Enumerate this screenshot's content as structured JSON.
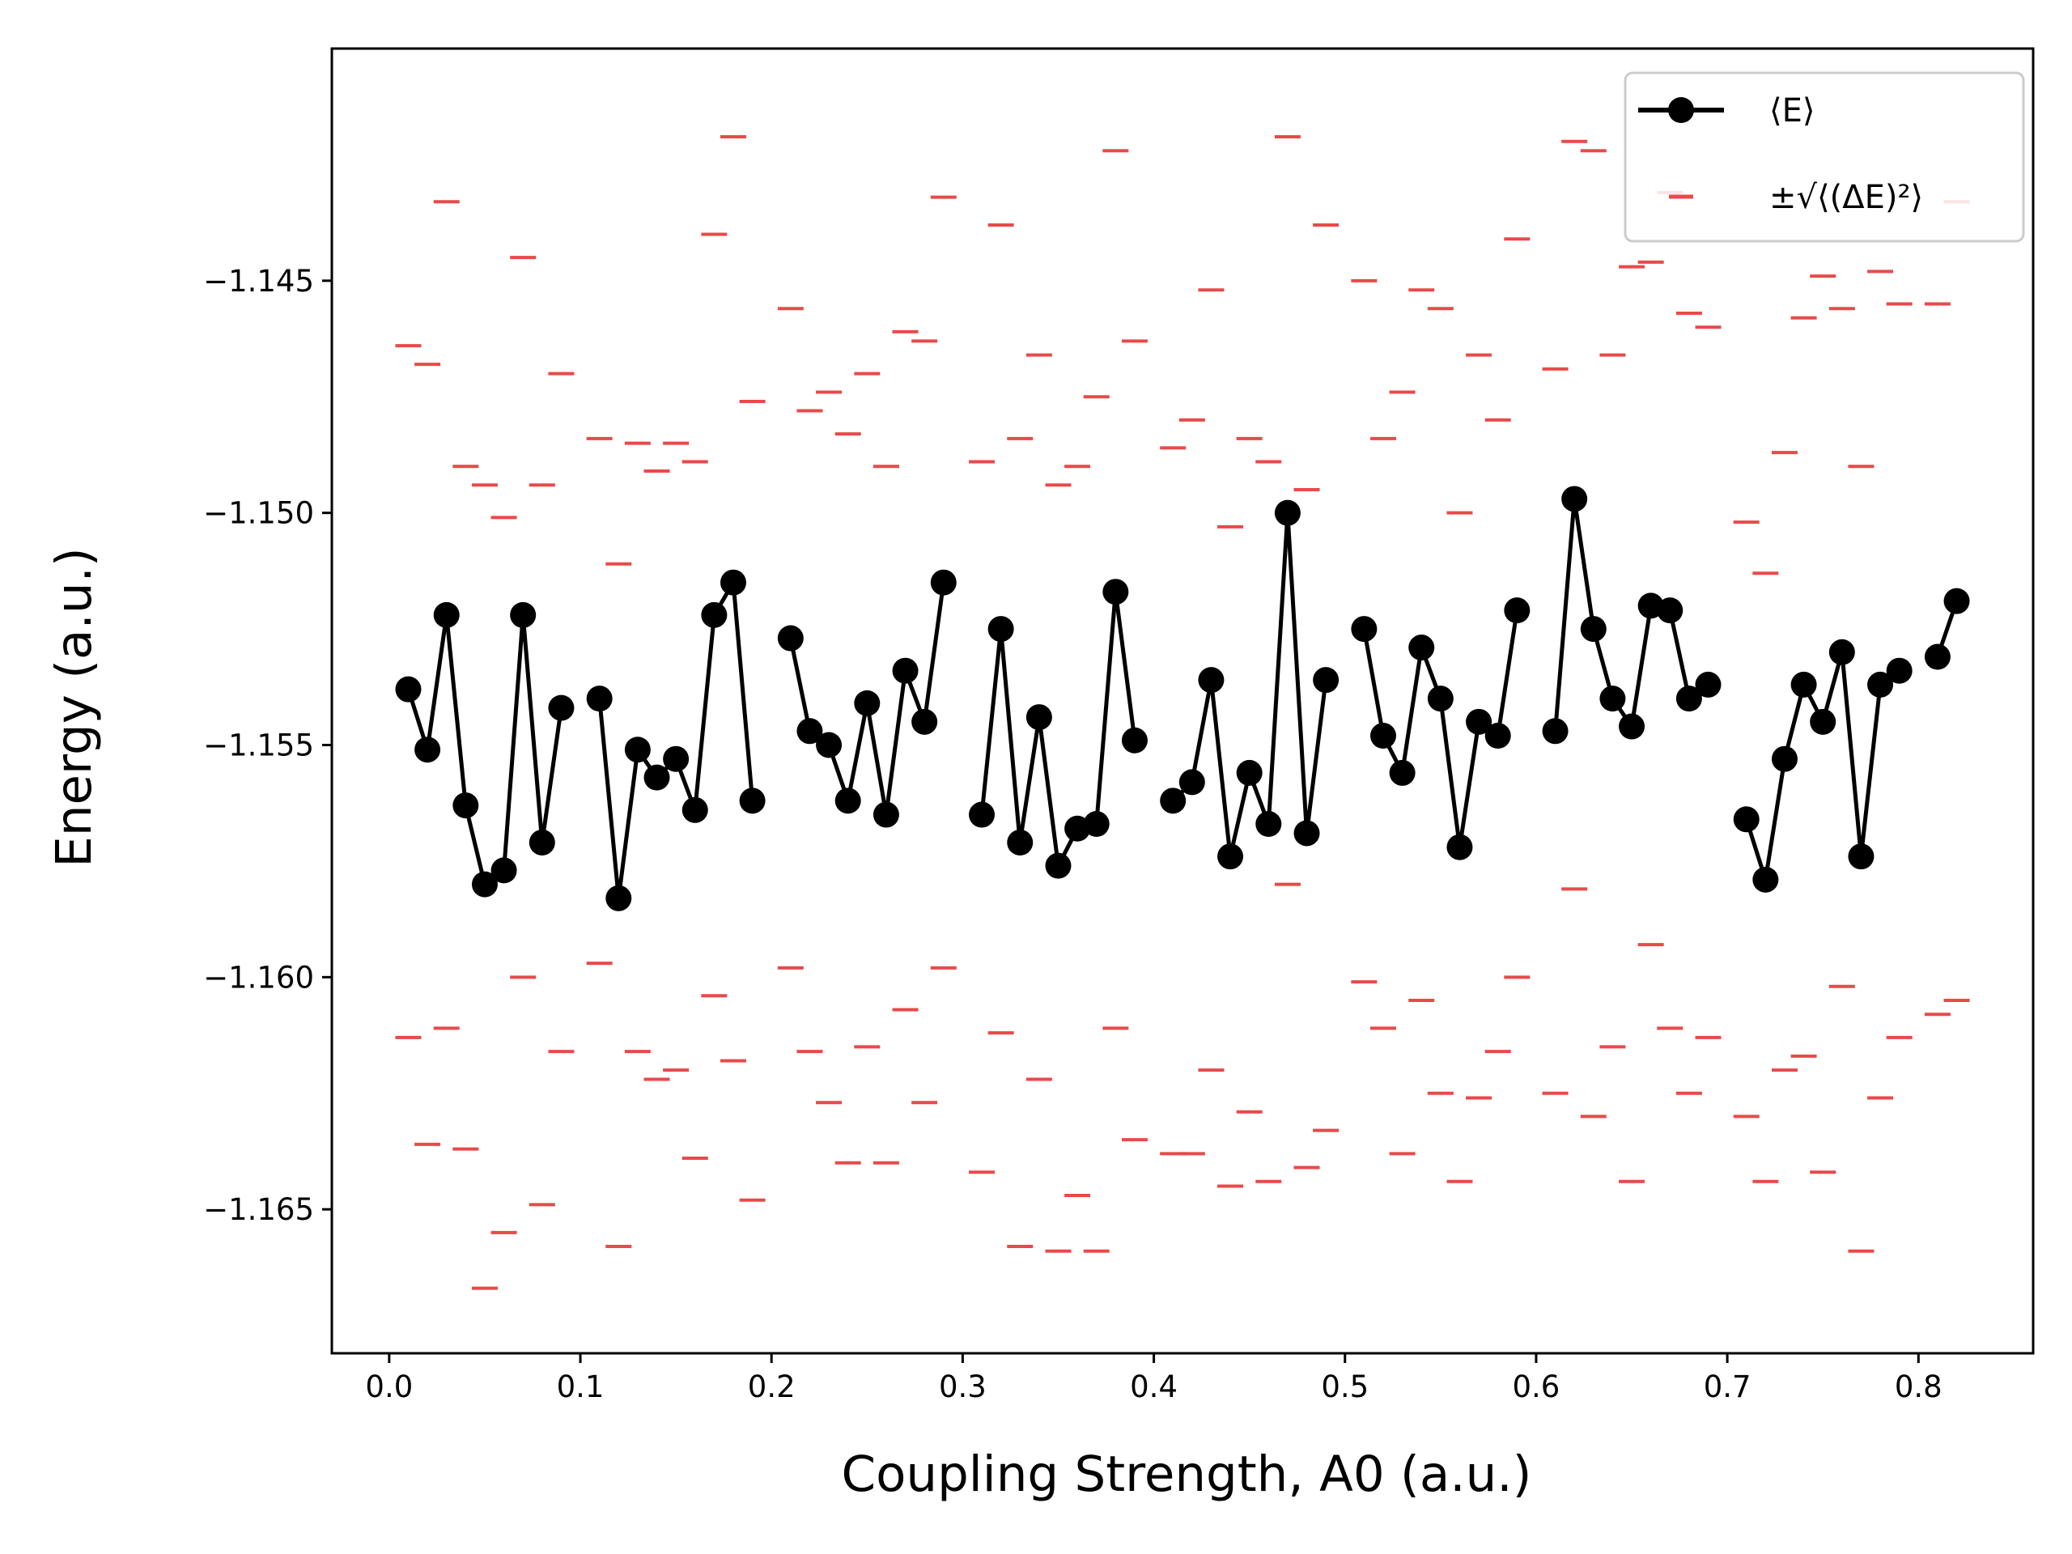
{
  "chart_data": {
    "type": "line",
    "title": "",
    "xlabel": "Coupling Strength, A0 (a.u.)",
    "ylabel": "Energy (a.u.)",
    "xlim": [
      -0.03,
      0.86
    ],
    "ylim": [
      -1.1681,
      -1.14
    ],
    "xticks": [
      0.0,
      0.1,
      0.2,
      0.3,
      0.4,
      0.5,
      0.6,
      0.7,
      0.8
    ],
    "xtick_labels": [
      "0.0",
      "0.1",
      "0.2",
      "0.3",
      "0.4",
      "0.5",
      "0.6",
      "0.7",
      "0.8"
    ],
    "yticks": [
      -1.145,
      -1.15,
      -1.155,
      -1.16,
      -1.165
    ],
    "ytick_labels": [
      "−1.145",
      "−1.150",
      "−1.155",
      "−1.160",
      "−1.165"
    ],
    "grid": false,
    "legend_position": "top-right",
    "series": [
      {
        "name": "⟨E⟩",
        "color": "#000000",
        "marker": "circle",
        "x": [
          0.01,
          0.02,
          0.03,
          0.04,
          0.05,
          0.06,
          0.07,
          0.08,
          0.09,
          0.1,
          0.11,
          0.12,
          0.13,
          0.14,
          0.15,
          0.16,
          0.17,
          0.18,
          0.19,
          0.2,
          0.21,
          0.22,
          0.23,
          0.24,
          0.25,
          0.26,
          0.27,
          0.28,
          0.29,
          0.3,
          0.31,
          0.32,
          0.33,
          0.34,
          0.35,
          0.36,
          0.37,
          0.38,
          0.39,
          0.4,
          0.41,
          0.42,
          0.43,
          0.44,
          0.45,
          0.46,
          0.47,
          0.48,
          0.49,
          0.5,
          0.51,
          0.52,
          0.53,
          0.54,
          0.55,
          0.56,
          0.57,
          0.58,
          0.59,
          0.6,
          0.61,
          0.62,
          0.63,
          0.64,
          0.65,
          0.66,
          0.67,
          0.68,
          0.69,
          0.7,
          0.71,
          0.72,
          0.73,
          0.74,
          0.75,
          0.76,
          0.77,
          0.78,
          0.79,
          0.8,
          0.81,
          0.82
        ],
        "values": [
          -1.1538,
          -1.1551,
          -1.1522,
          -1.1563,
          -1.158,
          -1.1577,
          -1.1522,
          -1.1571,
          -1.1542,
          null,
          -1.154,
          -1.1583,
          -1.1551,
          -1.1557,
          -1.1553,
          -1.1564,
          -1.1522,
          -1.1515,
          -1.1562,
          null,
          -1.1527,
          -1.1547,
          -1.155,
          -1.1562,
          -1.1541,
          -1.1565,
          -1.1534,
          -1.1545,
          -1.1515,
          null,
          -1.1565,
          -1.1525,
          -1.1571,
          -1.1544,
          -1.1576,
          -1.1568,
          -1.1567,
          -1.1517,
          -1.1549,
          null,
          -1.1562,
          -1.1558,
          -1.1536,
          -1.1574,
          -1.1556,
          -1.1567,
          -1.15,
          -1.1569,
          -1.1536,
          null,
          -1.1525,
          -1.1548,
          -1.1556,
          -1.1529,
          -1.154,
          -1.1572,
          -1.1545,
          -1.1548,
          -1.1521,
          null,
          -1.1547,
          -1.1497,
          -1.1525,
          -1.154,
          -1.1546,
          -1.152,
          -1.1521,
          -1.154,
          -1.1537,
          null,
          -1.1566,
          -1.1579,
          -1.1553,
          -1.1537,
          -1.1545,
          -1.153,
          -1.1574,
          -1.1537,
          -1.1534,
          null,
          -1.1531,
          -1.1519
        ]
      },
      {
        "name": "±√⟨(ΔE)²⟩ (upper)",
        "color": "#e84a4a",
        "marker": "hline",
        "x": [
          0.01,
          0.02,
          0.03,
          0.04,
          0.05,
          0.06,
          0.07,
          0.08,
          0.09,
          0.1,
          0.11,
          0.12,
          0.13,
          0.14,
          0.15,
          0.16,
          0.17,
          0.18,
          0.19,
          0.2,
          0.21,
          0.22,
          0.23,
          0.24,
          0.25,
          0.26,
          0.27,
          0.28,
          0.29,
          0.3,
          0.31,
          0.32,
          0.33,
          0.34,
          0.35,
          0.36,
          0.37,
          0.38,
          0.39,
          0.4,
          0.41,
          0.42,
          0.43,
          0.44,
          0.45,
          0.46,
          0.47,
          0.48,
          0.49,
          0.5,
          0.51,
          0.52,
          0.53,
          0.54,
          0.55,
          0.56,
          0.57,
          0.58,
          0.59,
          0.6,
          0.61,
          0.62,
          0.63,
          0.64,
          0.65,
          0.66,
          0.67,
          0.68,
          0.69,
          0.7,
          0.71,
          0.72,
          0.73,
          0.74,
          0.75,
          0.76,
          0.77,
          0.78,
          0.79,
          0.8,
          0.81,
          0.82
        ],
        "values": [
          -1.1464,
          -1.1468,
          -1.1433,
          -1.149,
          -1.1494,
          -1.1501,
          -1.1445,
          -1.1494,
          -1.147,
          null,
          -1.1484,
          -1.1511,
          -1.1485,
          -1.1491,
          -1.1485,
          -1.1489,
          -1.144,
          -1.1419,
          -1.1476,
          null,
          -1.1456,
          -1.1478,
          -1.1474,
          -1.1483,
          -1.147,
          -1.149,
          -1.1461,
          -1.1463,
          -1.1432,
          null,
          -1.1489,
          -1.1438,
          -1.1484,
          -1.1466,
          -1.1494,
          -1.149,
          -1.1475,
          -1.1422,
          -1.1463,
          null,
          -1.1486,
          -1.148,
          -1.1452,
          -1.1503,
          -1.1484,
          -1.1489,
          -1.1419,
          -1.1495,
          -1.1438,
          null,
          -1.145,
          -1.1484,
          -1.1474,
          -1.1452,
          -1.1456,
          -1.15,
          -1.1466,
          -1.148,
          -1.1441,
          null,
          -1.1469,
          -1.142,
          -1.1422,
          -1.1466,
          -1.1447,
          -1.1446,
          -1.1431,
          -1.1457,
          -1.146,
          null,
          -1.1502,
          -1.1513,
          -1.1487,
          -1.1458,
          -1.1449,
          -1.1456,
          -1.149,
          -1.1448,
          -1.1455,
          null,
          -1.1455,
          -1.1433
        ]
      },
      {
        "name": "±√⟨(ΔE)²⟩ (lower)",
        "color": "#e84a4a",
        "marker": "hline",
        "x": [
          0.01,
          0.02,
          0.03,
          0.04,
          0.05,
          0.06,
          0.07,
          0.08,
          0.09,
          0.1,
          0.11,
          0.12,
          0.13,
          0.14,
          0.15,
          0.16,
          0.17,
          0.18,
          0.19,
          0.2,
          0.21,
          0.22,
          0.23,
          0.24,
          0.25,
          0.26,
          0.27,
          0.28,
          0.29,
          0.3,
          0.31,
          0.32,
          0.33,
          0.34,
          0.35,
          0.36,
          0.37,
          0.38,
          0.39,
          0.4,
          0.41,
          0.42,
          0.43,
          0.44,
          0.45,
          0.46,
          0.47,
          0.48,
          0.49,
          0.5,
          0.51,
          0.52,
          0.53,
          0.54,
          0.55,
          0.56,
          0.57,
          0.58,
          0.59,
          0.6,
          0.61,
          0.62,
          0.63,
          0.64,
          0.65,
          0.66,
          0.67,
          0.68,
          0.69,
          0.7,
          0.71,
          0.72,
          0.73,
          0.74,
          0.75,
          0.76,
          0.77,
          0.78,
          0.79,
          0.8,
          0.81,
          0.82
        ],
        "values": [
          -1.1613,
          -1.1636,
          -1.1611,
          -1.1637,
          -1.1667,
          -1.1655,
          -1.16,
          -1.1649,
          -1.1616,
          null,
          -1.1597,
          -1.1658,
          -1.1616,
          -1.1622,
          -1.162,
          -1.1639,
          -1.1604,
          -1.1618,
          -1.1648,
          null,
          -1.1598,
          -1.1616,
          -1.1627,
          -1.164,
          -1.1615,
          -1.164,
          -1.1607,
          -1.1627,
          -1.1598,
          null,
          -1.1642,
          -1.1612,
          -1.1658,
          -1.1622,
          -1.1659,
          -1.1647,
          -1.1659,
          -1.1611,
          -1.1635,
          null,
          -1.1638,
          -1.1638,
          -1.162,
          -1.1645,
          -1.1629,
          -1.1644,
          -1.158,
          -1.1641,
          -1.1633,
          null,
          -1.1601,
          -1.1611,
          -1.1638,
          -1.1605,
          -1.1625,
          -1.1644,
          -1.1626,
          -1.1616,
          -1.16,
          null,
          -1.1625,
          -1.1581,
          -1.163,
          -1.1615,
          -1.1644,
          -1.1593,
          -1.1611,
          -1.1625,
          -1.1613,
          null,
          -1.163,
          -1.1644,
          -1.162,
          -1.1617,
          -1.1642,
          -1.1602,
          -1.1659,
          -1.1626,
          -1.1613,
          null,
          -1.1608,
          -1.1605
        ]
      }
    ],
    "legend": [
      {
        "label": "⟨E⟩",
        "marker": "line-circle",
        "color": "#000000"
      },
      {
        "label": "±√⟨(ΔE)²⟩",
        "marker": "hline",
        "color": "#e84a4a"
      }
    ]
  }
}
